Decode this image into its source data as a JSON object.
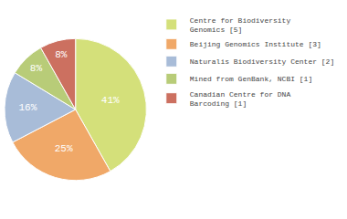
{
  "chart_data": {
    "type": "pie",
    "categories": [
      "Centre for Biodiversity\nGenomics [5]",
      "Beijing Genomics Institute [3]",
      "Naturalis Biodiversity Center [2]",
      "Mined from GenBank, NCBI [1]",
      "Canadian Centre for DNA\nBarcoding [1]"
    ],
    "values": [
      41,
      25,
      16,
      8,
      8
    ],
    "value_labels": [
      "41%",
      "25%",
      "16%",
      "8%",
      "8%"
    ],
    "colors": [
      "#d4e07a",
      "#f0a868",
      "#a8bcd8",
      "#b8cc78",
      "#cc7060"
    ],
    "data_labels": true,
    "legend": "right"
  }
}
